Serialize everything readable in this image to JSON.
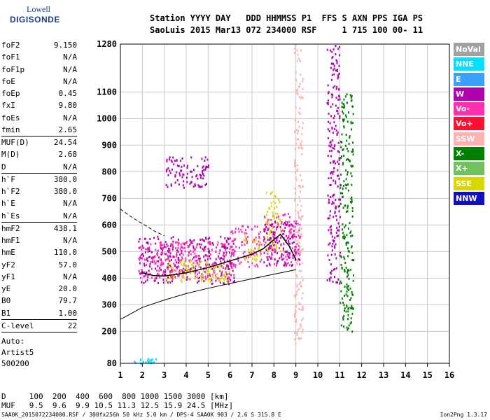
{
  "logo": {
    "line1": "Lowell",
    "line2": "DIGISONDE"
  },
  "header": {
    "labels": "Station YYYY DAY   DDD HHMMSS P1  FFS S AXN PPS IGA PS",
    "values": "SaoLuis 2015 Mar13 072 234000 RSF     1 715 100 00- 11"
  },
  "params": [
    {
      "k": "foF2",
      "v": "9.150"
    },
    {
      "k": "foF1",
      "v": "N/A"
    },
    {
      "k": "foF1p",
      "v": "N/A"
    },
    {
      "k": "foE",
      "v": "N/A"
    },
    {
      "k": "foEp",
      "v": "0.45"
    },
    {
      "k": "fxI",
      "v": "9.80"
    },
    {
      "k": "foEs",
      "v": "N/A"
    },
    {
      "k": "fmin",
      "v": "2.65"
    },
    {
      "k": "MUF(D)",
      "v": "24.54",
      "sep": true
    },
    {
      "k": "M(D)",
      "v": "2.68"
    },
    {
      "k": "D",
      "v": "N/A"
    },
    {
      "k": "h`F",
      "v": "380.0",
      "sep": true
    },
    {
      "k": "h`F2",
      "v": "380.0"
    },
    {
      "k": "h`E",
      "v": "N/A"
    },
    {
      "k": "h`Es",
      "v": "N/A"
    },
    {
      "k": "hmF2",
      "v": "438.1",
      "sep": true
    },
    {
      "k": "hmF1",
      "v": "N/A"
    },
    {
      "k": "hmE",
      "v": "110.0"
    },
    {
      "k": "yF2",
      "v": "57.0"
    },
    {
      "k": "yF1",
      "v": "N/A"
    },
    {
      "k": "yE",
      "v": "20.0"
    },
    {
      "k": "B0",
      "v": "79.7"
    },
    {
      "k": "B1",
      "v": "1.00"
    },
    {
      "k": "C-level",
      "v": "22",
      "sep": true
    }
  ],
  "auto": {
    "l1": "Auto:",
    "l2": "Artist5",
    "l3": "500200"
  },
  "footer": {
    "d": "D     100  200  400  600  800 1000 1500 3000 [km]",
    "muf": "MUF   9.5  9.6  9.9 10.5 11.3 12.5 15.9 24.5 [MHz]"
  },
  "bottom": "SAA0K_2015072234000.RSF / 300fx256h 50 kHz 5.0 km / DPS-4 SAA0K 903 / 2.6 S 315.8 E",
  "version": "Ion2Png 1.3.17",
  "legend": [
    {
      "label": "NoVal",
      "color": "#a0a0a0",
      "text": "#ffffff"
    },
    {
      "label": "NNE",
      "color": "#00e0ff",
      "text": "#ffffff"
    },
    {
      "label": "E",
      "color": "#3aa0ff",
      "text": "#ffffff"
    },
    {
      "label": "W",
      "color": "#b000b0",
      "text": "#ffffff"
    },
    {
      "label": "Vo-",
      "color": "#ff30b0",
      "text": "#ffffff"
    },
    {
      "label": "Vo+",
      "color": "#ff1030",
      "text": "#ffffff"
    },
    {
      "label": "SSW",
      "color": "#ffb0b0",
      "text": "#ffffff"
    },
    {
      "label": "X-",
      "color": "#008000",
      "text": "#ffffff"
    },
    {
      "label": "X+",
      "color": "#70c060",
      "text": "#ffffff"
    },
    {
      "label": "SSE",
      "color": "#d8d800",
      "text": "#ffffff"
    },
    {
      "label": "NNW",
      "color": "#1010c0",
      "text": "#ffffff"
    }
  ],
  "chart_data": {
    "type": "scatter",
    "xlabel": "",
    "ylabel": "",
    "xlim": [
      1,
      16
    ],
    "ylim": [
      80,
      1280
    ],
    "xticks": [
      1,
      2,
      3,
      4,
      5,
      6,
      7,
      8,
      9,
      10,
      11,
      12,
      13,
      14,
      15,
      16
    ],
    "yticks": [
      80,
      200,
      300,
      400,
      500,
      600,
      700,
      800,
      900,
      1000,
      1100,
      1280
    ],
    "ytick_labels": [
      "80",
      "200",
      "300",
      "400",
      "500",
      "600",
      "700",
      "800",
      "900",
      "1000",
      "1100",
      "1280"
    ],
    "grid": true,
    "profile_solid": [
      [
        1,
        245
      ],
      [
        2,
        290
      ],
      [
        3,
        318
      ],
      [
        4,
        342
      ],
      [
        5,
        362
      ],
      [
        6,
        380
      ],
      [
        7,
        398
      ],
      [
        8,
        415
      ],
      [
        9,
        432
      ]
    ],
    "profile_dashed": [
      [
        1,
        660
      ],
      [
        1.5,
        630
      ],
      [
        2,
        605
      ],
      [
        2.6,
        575
      ],
      [
        3,
        560
      ]
    ],
    "trace_curve": [
      [
        2,
        420
      ],
      [
        2.5,
        410
      ],
      [
        3,
        408
      ],
      [
        4,
        420
      ],
      [
        5,
        440
      ],
      [
        6,
        465
      ],
      [
        7,
        490
      ],
      [
        7.5,
        510
      ],
      [
        8,
        545
      ],
      [
        8.3,
        565
      ],
      [
        8.7,
        520
      ],
      [
        9,
        470
      ]
    ],
    "echo_regions": [
      {
        "x": [
          1.8,
          6.2
        ],
        "y": [
          380,
          560
        ],
        "color": "#b000b0"
      },
      {
        "x": [
          1.8,
          6.2
        ],
        "y": [
          400,
          540
        ],
        "color": "#ff30b0"
      },
      {
        "x": [
          3,
          6
        ],
        "y": [
          390,
          470
        ],
        "color": "#d8d800"
      },
      {
        "x": [
          6,
          7.4
        ],
        "y": [
          440,
          600
        ],
        "color": "#ff30b0"
      },
      {
        "x": [
          6.6,
          7.4
        ],
        "y": [
          470,
          560
        ],
        "color": "#d8d800"
      },
      {
        "x": [
          7.5,
          9.2
        ],
        "y": [
          450,
          650
        ],
        "color": "#ff30b0"
      },
      {
        "x": [
          7.6,
          8.3
        ],
        "y": [
          500,
          730
        ],
        "color": "#d8d800"
      },
      {
        "x": [
          7.5,
          9.2
        ],
        "y": [
          450,
          620
        ],
        "color": "#b000b0"
      },
      {
        "x": [
          3,
          5
        ],
        "y": [
          740,
          860
        ],
        "color": "#b000b0"
      },
      {
        "x": [
          10.4,
          11
        ],
        "y": [
          380,
          1280
        ],
        "color": "#b000b0"
      },
      {
        "x": [
          8.9,
          9.3
        ],
        "y": [
          150,
          1280
        ],
        "color": "#ffb0b0"
      },
      {
        "x": [
          11,
          11.6
        ],
        "y": [
          200,
          1100
        ],
        "color": "#008000"
      },
      {
        "x": [
          1.6,
          2.6
        ],
        "y": [
          80,
          100
        ],
        "color": "#00e0ff"
      }
    ]
  }
}
